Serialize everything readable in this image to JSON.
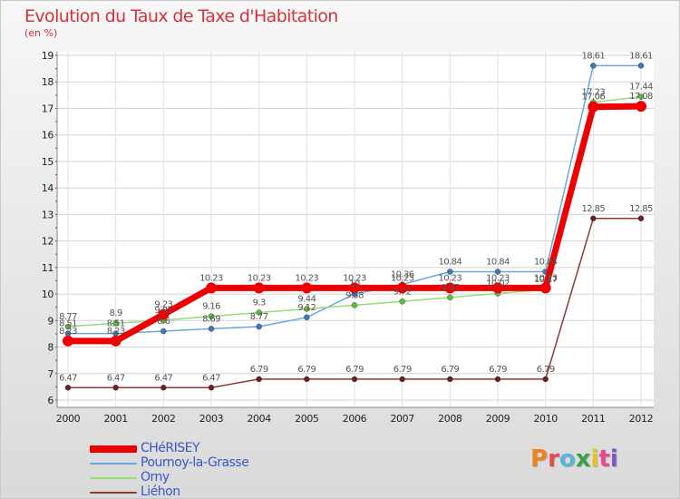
{
  "title": "Evolution du Taux de Taxe d'Habitation",
  "unit_label": "(en %)",
  "logo": {
    "text": "Proxiti",
    "letter_colors": [
      "#f0821e",
      "#e84a4a",
      "#58b7d8",
      "#3aa04b",
      "#e8c21e",
      "#e84a8a",
      "#7a58c8"
    ]
  },
  "chart_data": {
    "type": "line",
    "title": "Evolution du Taux de Taxe d'Habitation",
    "ylabel": "(en %)",
    "xlabel": "",
    "x": [
      "2000",
      "2001",
      "2002",
      "2003",
      "2004",
      "2005",
      "2006",
      "2007",
      "2008",
      "2009",
      "2010",
      "2011",
      "2012"
    ],
    "ylim": [
      6,
      19
    ],
    "yticks": [
      "6",
      "7",
      "8",
      "9",
      "10",
      "11",
      "12",
      "13",
      "14",
      "15",
      "16",
      "17",
      "18",
      "19"
    ],
    "grid": true,
    "legend_position": "bottom-left",
    "series": [
      {
        "name": "CHéRISEY",
        "color": "#ee0000",
        "marker_color": "#ee0000",
        "values": [
          8.23,
          8.23,
          9.23,
          10.23,
          10.23,
          10.23,
          10.23,
          10.23,
          10.23,
          10.23,
          10.23,
          17.06,
          17.08
        ],
        "labels": [
          "8.23",
          "8.23",
          "9.23",
          "10.23",
          "10.23",
          "10.23",
          "10.23",
          "10.23",
          "10.23",
          "10.23",
          "10.23",
          "17.06",
          "17.08"
        ],
        "emphasis": true
      },
      {
        "name": "Pournoy-la-Grasse",
        "color": "#6aa7dc",
        "marker_color": "#3a78c0",
        "values": [
          8.51,
          8.51,
          8.6,
          8.69,
          8.77,
          9.12,
          10.0,
          10.36,
          10.84,
          10.84,
          10.84,
          18.61,
          18.61
        ],
        "labels": [
          "8.51",
          "8.51",
          "8.6",
          "8.69",
          "8.77",
          "9.12",
          "10",
          "10.36",
          "10.84",
          "10.84",
          "10.84",
          "18.61",
          "18.61"
        ]
      },
      {
        "name": "Orny",
        "color": "#96dc78",
        "marker_color": "#5cc03a",
        "values": [
          8.77,
          8.9,
          9.01,
          9.16,
          9.3,
          9.44,
          9.58,
          9.72,
          9.87,
          10.02,
          10.17,
          17.23,
          17.44
        ],
        "labels": [
          "8.77",
          "8.9",
          "9.01",
          "9.16",
          "9.3",
          "9.44",
          "9.58",
          "9.72",
          "9.87",
          "10.02",
          "10.17",
          "17.23",
          "17.44"
        ]
      },
      {
        "name": "Liéhon",
        "color": "#8b3a3a",
        "marker_color": "#6e1e1e",
        "values": [
          6.47,
          6.47,
          6.47,
          6.47,
          6.79,
          6.79,
          6.79,
          6.79,
          6.79,
          6.79,
          6.79,
          12.85,
          12.85
        ],
        "labels": [
          "6.47",
          "6.47",
          "6.47",
          "6.47",
          "6.79",
          "6.79",
          "6.79",
          "6.79",
          "6.79",
          "6.79",
          "6.79",
          "12.85",
          "12.85"
        ]
      }
    ]
  }
}
